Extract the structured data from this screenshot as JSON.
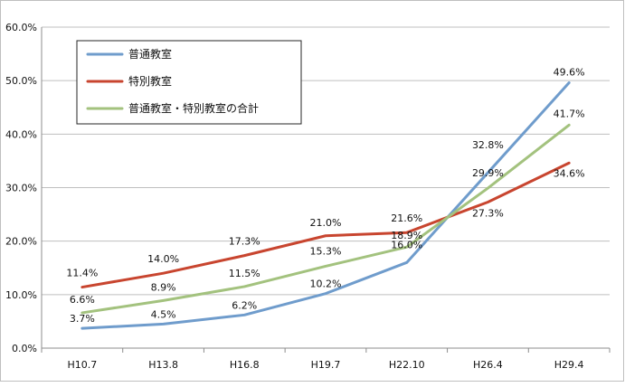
{
  "chart_data": {
    "type": "line",
    "title": "",
    "xlabel": "",
    "ylabel": "",
    "categories": [
      "H10.7",
      "H13.8",
      "H16.8",
      "H19.7",
      "H22.10",
      "H26.4",
      "H29.4"
    ],
    "ylim": [
      0,
      60
    ],
    "yticks": [
      0,
      10,
      20,
      30,
      40,
      50,
      60
    ],
    "ytick_labels": [
      "0.0%",
      "10.0%",
      "20.0%",
      "30.0%",
      "40.0%",
      "50.0%",
      "60.0%"
    ],
    "grid": true,
    "legend_position": "top-left",
    "series": [
      {
        "name": "普通教室",
        "color": "#6f9ccc",
        "values": [
          3.7,
          4.5,
          6.2,
          10.2,
          16.0,
          32.8,
          49.6
        ],
        "labels": [
          "3.7%",
          "4.5%",
          "6.2%",
          "10.2%",
          "16.0%",
          "32.8%",
          "49.6%"
        ]
      },
      {
        "name": "特別教室",
        "color": "#c8452f",
        "values": [
          11.4,
          14.0,
          17.3,
          21.0,
          21.6,
          27.3,
          34.6
        ],
        "labels": [
          "11.4%",
          "14.0%",
          "17.3%",
          "21.0%",
          "21.6%",
          "27.3%",
          "34.6%"
        ]
      },
      {
        "name": "普通教室・特別教室の合計",
        "color": "#a3c27e",
        "values": [
          6.6,
          8.9,
          11.5,
          15.3,
          18.9,
          29.9,
          41.7
        ],
        "labels": [
          "6.6%",
          "8.9%",
          "11.5%",
          "15.3%",
          "18.9%",
          "29.9%",
          "41.7%"
        ]
      }
    ]
  }
}
